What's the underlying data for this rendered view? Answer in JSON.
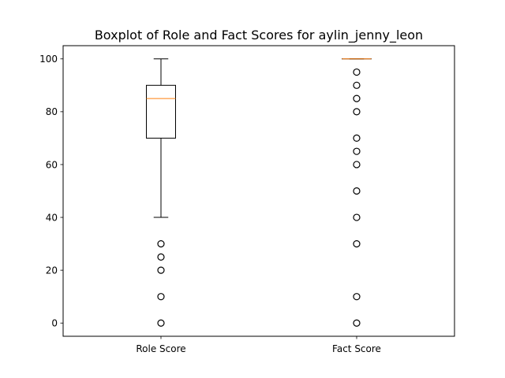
{
  "chart_data": {
    "type": "boxplot",
    "title": "Boxplot of Role and Fact Scores for aylin_jenny_leon",
    "xlabel": "",
    "ylabel": "",
    "categories": [
      "Role Score",
      "Fact Score"
    ],
    "ylim": [
      -5,
      105
    ],
    "yticks": [
      0,
      20,
      40,
      60,
      80,
      100
    ],
    "grid": false,
    "boxes": [
      {
        "name": "Role Score",
        "whisker_low": 40,
        "q1": 70,
        "median": 85,
        "q3": 90,
        "whisker_high": 100,
        "outliers": [
          30,
          25,
          20,
          10,
          0
        ]
      },
      {
        "name": "Fact Score",
        "whisker_low": 100,
        "q1": 100,
        "median": 100,
        "q3": 100,
        "whisker_high": 100,
        "outliers": [
          95,
          90,
          85,
          80,
          70,
          65,
          60,
          50,
          40,
          30,
          10,
          0
        ]
      }
    ],
    "colors": {
      "box": "#000000",
      "median": "#ff7f0e",
      "outlier": "#000000"
    }
  }
}
